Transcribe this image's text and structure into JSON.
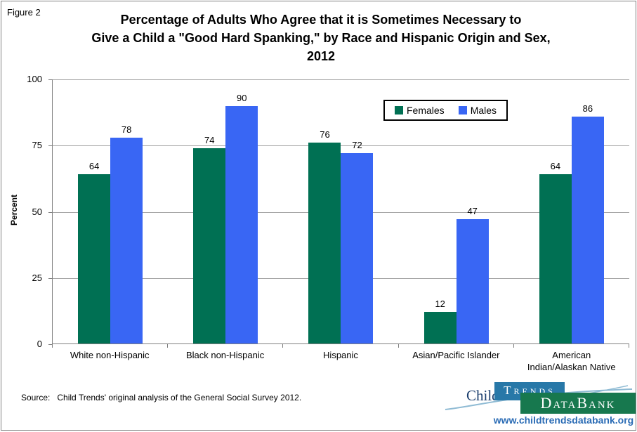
{
  "figure_label": "Figure 2",
  "title_lines": [
    "Percentage of Adults Who Agree that it is Sometimes Necessary to",
    "Give a Child a \"Good Hard Spanking,\" by Race and Hispanic Origin and Sex,",
    "2012"
  ],
  "chart_data": {
    "type": "bar",
    "categories": [
      "White non-Hispanic",
      "Black non-Hispanic",
      "Hispanic",
      "Asian/Pacific Islander",
      "American Indian/Alaskan Native"
    ],
    "series": [
      {
        "name": "Females",
        "color": "#007053",
        "values": [
          64,
          74,
          76,
          12,
          64
        ]
      },
      {
        "name": "Males",
        "color": "#3966f4",
        "values": [
          78,
          90,
          72,
          47,
          86
        ]
      }
    ],
    "ylabel": "Percent",
    "xlabel": "",
    "ylim": [
      0,
      100
    ],
    "yticks": [
      0,
      25,
      50,
      75,
      100
    ],
    "grid": true,
    "legend_position": "top-center"
  },
  "source_text": "Source:   Child Trends' original analysis of the General Social Survey 2012.",
  "logo": {
    "child": "Child",
    "trends": "Trends",
    "databank": "DataBank",
    "url": "www.childtrendsdatabank.org"
  },
  "colors": {
    "females_bar": "#007053",
    "males_bar": "#3966f4",
    "gridline": "#a6a6a6",
    "axis": "#808080",
    "logo_trends_box": "#2878a8",
    "logo_databank_box": "#17784e",
    "logo_url_text": "#2b6cb5",
    "logo_swoosh": "#8fbbd4"
  }
}
